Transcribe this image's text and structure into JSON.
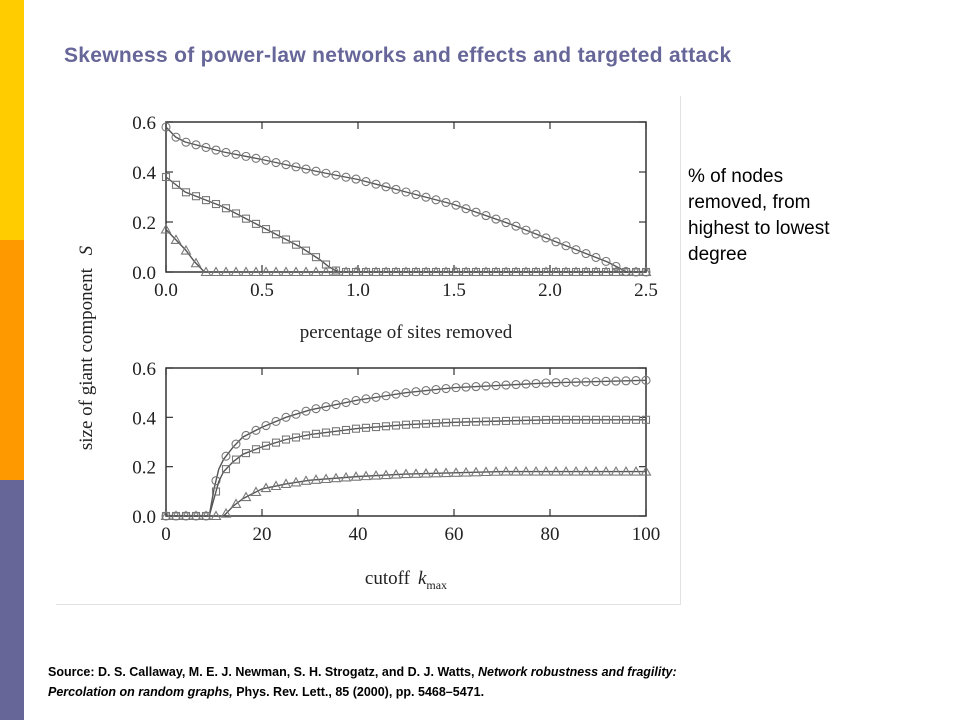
{
  "slide": {
    "title": "Skewness of power-law networks and effects and targeted attack",
    "theme_colors": {
      "bar_top": "#ffcc00",
      "bar_middle": "#ff9900",
      "bar_bottom": "#666699",
      "title": "#666699"
    },
    "side_note": [
      "% of nodes",
      "removed, from",
      "highest to lowest",
      "degree"
    ],
    "source": {
      "line1_prefix": "Source: D. S. Callaway, M. E. J. Newman, S. H. Strogatz, and D. J. Watts, ",
      "line1_italic": "Network robustness and fragility:",
      "line2_italic": "Percolation on random graphs,",
      "line2_suffix": " Phys. Rev. Lett., 85 (2000), pp. 5468–5471."
    }
  },
  "chart_data": [
    {
      "type": "line",
      "shared_ylabel": "size of giant component",
      "shared_ylabel_symbol": "S",
      "xlabel": "percentage of sites removed",
      "xlim": [
        0,
        2.5
      ],
      "ylim": [
        0,
        0.6
      ],
      "xticks": [
        0.0,
        0.5,
        1.0,
        1.5,
        2.0,
        2.5
      ],
      "xtick_labels": [
        "0.0",
        "0.5",
        "1.0",
        "1.5",
        "2.0",
        "2.5"
      ],
      "yticks": [
        0.0,
        0.2,
        0.4,
        0.6
      ],
      "ytick_labels": [
        "0.0",
        "0.2",
        "0.4",
        "0.6"
      ],
      "grid": false,
      "series": [
        {
          "marker": "circle",
          "x": [
            0.0,
            0.05,
            0.1,
            0.2,
            0.3,
            0.5,
            0.8,
            1.0,
            1.2,
            1.5,
            1.8,
            2.0,
            2.2,
            2.3,
            2.35,
            2.4,
            2.5
          ],
          "y": [
            0.58,
            0.54,
            0.52,
            0.5,
            0.48,
            0.45,
            0.4,
            0.37,
            0.33,
            0.27,
            0.19,
            0.13,
            0.07,
            0.04,
            0.02,
            0.0,
            0.0
          ]
        },
        {
          "marker": "square",
          "x": [
            0.0,
            0.05,
            0.1,
            0.2,
            0.3,
            0.4,
            0.5,
            0.6,
            0.7,
            0.8,
            0.85,
            0.9,
            1.0,
            2.5
          ],
          "y": [
            0.38,
            0.35,
            0.32,
            0.29,
            0.26,
            0.22,
            0.18,
            0.14,
            0.1,
            0.05,
            0.02,
            0.0,
            0.0,
            0.0
          ]
        },
        {
          "marker": "triangle",
          "x": [
            0.0,
            0.05,
            0.1,
            0.15,
            0.2,
            2.5
          ],
          "y": [
            0.17,
            0.13,
            0.09,
            0.04,
            0.0,
            0.0
          ]
        }
      ]
    },
    {
      "type": "line",
      "xlabel": "cutoff",
      "xlabel_symbol": "k",
      "xlabel_subscript": "max",
      "xlim": [
        0,
        100
      ],
      "ylim": [
        0,
        0.6
      ],
      "xticks": [
        0,
        20,
        40,
        60,
        80,
        100
      ],
      "xtick_labels": [
        "0",
        "20",
        "40",
        "60",
        "80",
        "100"
      ],
      "yticks": [
        0.0,
        0.2,
        0.4,
        0.6
      ],
      "ytick_labels": [
        "0.0",
        "0.2",
        "0.4",
        "0.6"
      ],
      "grid": false,
      "series": [
        {
          "marker": "circle",
          "x": [
            0,
            9,
            10,
            11,
            12,
            14,
            16,
            20,
            25,
            30,
            40,
            50,
            60,
            70,
            80,
            90,
            100
          ],
          "y": [
            0.0,
            0.0,
            0.11,
            0.19,
            0.23,
            0.28,
            0.32,
            0.36,
            0.4,
            0.43,
            0.47,
            0.5,
            0.52,
            0.53,
            0.54,
            0.545,
            0.55
          ]
        },
        {
          "marker": "square",
          "x": [
            0,
            9,
            10,
            11,
            12,
            14,
            16,
            20,
            25,
            30,
            40,
            50,
            60,
            70,
            80,
            90,
            100
          ],
          "y": [
            0.0,
            0.0,
            0.07,
            0.14,
            0.18,
            0.22,
            0.25,
            0.28,
            0.31,
            0.33,
            0.355,
            0.37,
            0.38,
            0.385,
            0.39,
            0.39,
            0.39
          ]
        },
        {
          "marker": "triangle",
          "x": [
            0,
            12,
            13,
            14,
            16,
            18,
            20,
            25,
            30,
            40,
            50,
            60,
            70,
            80,
            90,
            100
          ],
          "y": [
            0.0,
            0.0,
            0.02,
            0.04,
            0.07,
            0.09,
            0.11,
            0.13,
            0.145,
            0.16,
            0.17,
            0.175,
            0.18,
            0.18,
            0.18,
            0.18
          ]
        }
      ]
    }
  ]
}
